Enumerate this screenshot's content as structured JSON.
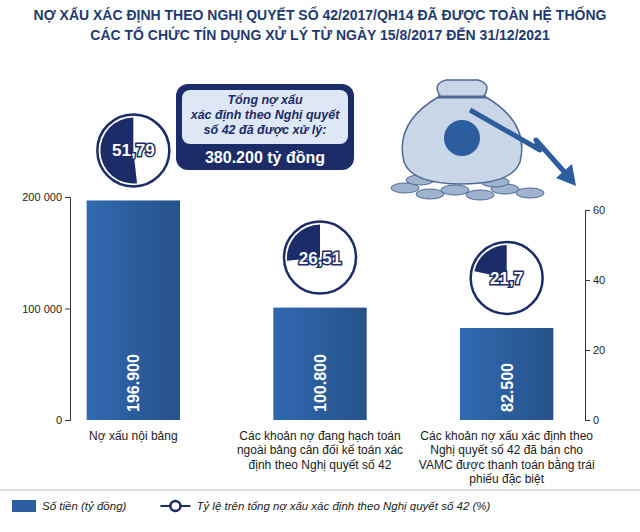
{
  "chart_data": {
    "type": "bar",
    "title": "NỢ XẤU XÁC ĐỊNH THEO NGHỊ QUYẾT SỐ 42/2017/QH14 ĐÃ ĐƯỢC TOÀN HỆ THỐNG\nCÁC TỔ CHỨC TÍN DỤNG XỬ LÝ TỪ NGÀY 15/8/2017 ĐẾN 31/12/2021",
    "annotations": [
      "Tổng nợ xấu",
      "xác định theo Nghị quyết",
      "số 42 đã được xử lý:",
      "380.200 tỷ đồng"
    ],
    "categories": [
      "Nợ xấu nội bảng",
      "Các khoản nợ đang hạch toán ngoài bảng cân đối kế toán xác định theo Nghị quyết số 42",
      "Các khoản nợ xấu xác định theo Nghị quyết số 42 đã bán cho VAMC được thanh toán bằng trái phiếu đặc biệt"
    ],
    "series": [
      {
        "name": "Số tiền (tỷ đồng)",
        "type": "bar",
        "color": "#2c5e9f",
        "values": [
          196900,
          100800,
          82500
        ],
        "value_labels": [
          "196.900",
          "100.800",
          "82.500"
        ]
      },
      {
        "name": "Tỷ lệ trên tổng nợ xấu xác định theo Nghị quyết số 42 (%)",
        "type": "pie",
        "color": "#1c2c68",
        "marker": "circle",
        "values": [
          51.79,
          26.51,
          21.7
        ],
        "value_labels": [
          "51,79",
          "26,51",
          "21,7"
        ]
      }
    ],
    "ylim": [
      0,
      200000
    ],
    "yticks": [
      0,
      {
        "value": 100000,
        "label": "100 000"
      },
      {
        "value": 200000,
        "label": "200 000"
      }
    ],
    "y2lim": [
      0,
      60
    ],
    "y2ticks": [
      0,
      20,
      40,
      60
    ],
    "data_labels": true,
    "legend": "bottom",
    "grid": false
  }
}
